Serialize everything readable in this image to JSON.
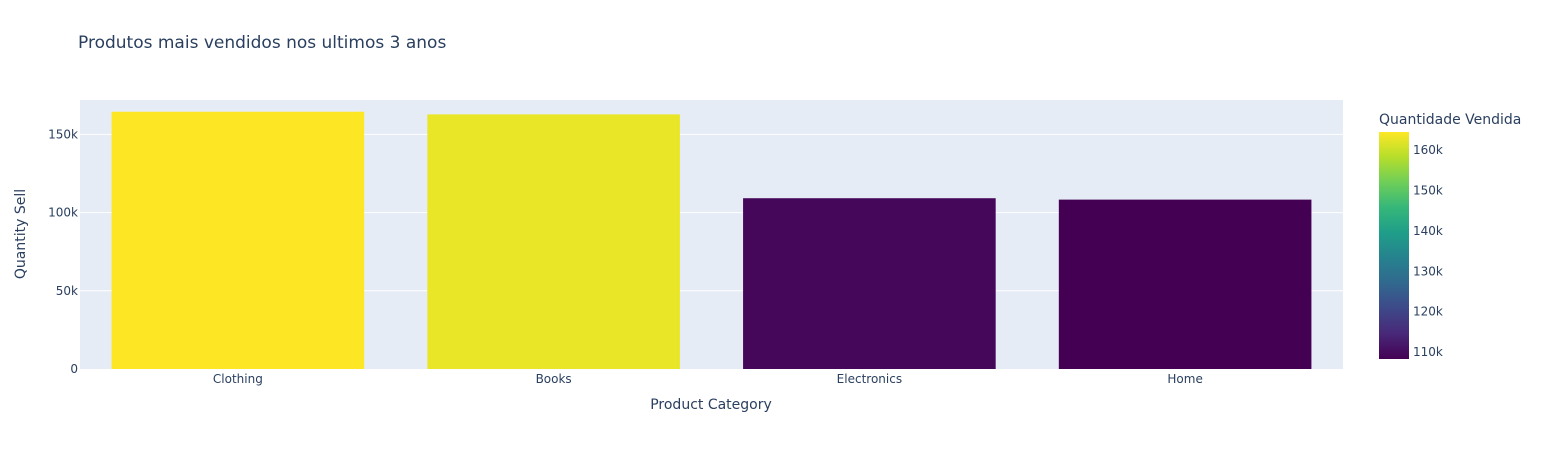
{
  "chart_data": {
    "type": "bar",
    "title": "Produtos mais vendidos nos ultimos 3 anos",
    "xlabel": "Product Category",
    "ylabel": "Quantity Sell",
    "categories": [
      "Clothing",
      "Books",
      "Electronics",
      "Home"
    ],
    "values": [
      164500,
      162800,
      109200,
      108300
    ],
    "ylim": [
      0,
      172000
    ],
    "yticks": [
      0,
      50000,
      100000,
      150000
    ],
    "ytick_labels": [
      "0",
      "50k",
      "100k",
      "150k"
    ],
    "grid": true,
    "colorbar": {
      "title": "Quantidade Vendida",
      "range": [
        108300,
        164500
      ],
      "ticks": [
        110000,
        120000,
        130000,
        140000,
        150000,
        160000
      ],
      "tick_labels": [
        "110k",
        "120k",
        "130k",
        "140k",
        "150k",
        "160k"
      ],
      "colorscale": [
        "#440154",
        "#482878",
        "#3e4989",
        "#31688e",
        "#26828e",
        "#1f9e89",
        "#35b779",
        "#6ece58",
        "#b5de2b",
        "#fde725"
      ]
    },
    "colors": {
      "plot_bg": "#e5ecf6",
      "grid": "#ffffff",
      "text": "#2a3f5f"
    }
  }
}
